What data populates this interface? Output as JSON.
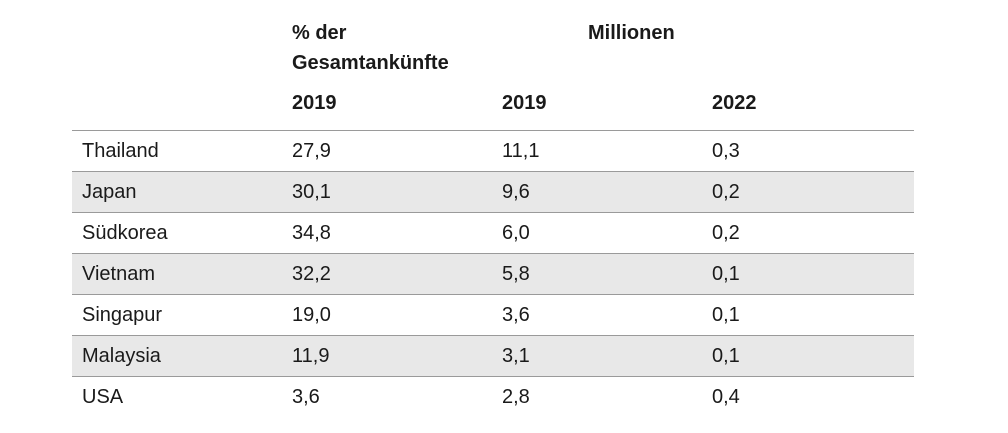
{
  "header": {
    "group_share": "% der",
    "group_share_line2": "Gesamtankünfte",
    "group_millions": "Millionen",
    "year_share": "2019",
    "year_millions_2019": "2019",
    "year_millions_2022": "2022"
  },
  "rows": [
    {
      "country": "Thailand",
      "share_2019": "27,9",
      "millions_2019": "11,1",
      "millions_2022": "0,3"
    },
    {
      "country": "Japan",
      "share_2019": "30,1",
      "millions_2019": "9,6",
      "millions_2022": "0,2"
    },
    {
      "country": "Südkorea",
      "share_2019": "34,8",
      "millions_2019": "6,0",
      "millions_2022": "0,2"
    },
    {
      "country": "Vietnam",
      "share_2019": "32,2",
      "millions_2019": "5,8",
      "millions_2022": "0,1"
    },
    {
      "country": "Singapur",
      "share_2019": "19,0",
      "millions_2019": "3,6",
      "millions_2022": "0,1"
    },
    {
      "country": "Malaysia",
      "share_2019": "11,9",
      "millions_2019": "3,1",
      "millions_2022": "0,1"
    },
    {
      "country": "USA",
      "share_2019": "3,6",
      "millions_2019": "2,8",
      "millions_2022": "0,4"
    }
  ],
  "colors": {
    "text": "#1a1a1a",
    "row_shade": "#e8e8e8",
    "rule": "#9a9a9a"
  }
}
